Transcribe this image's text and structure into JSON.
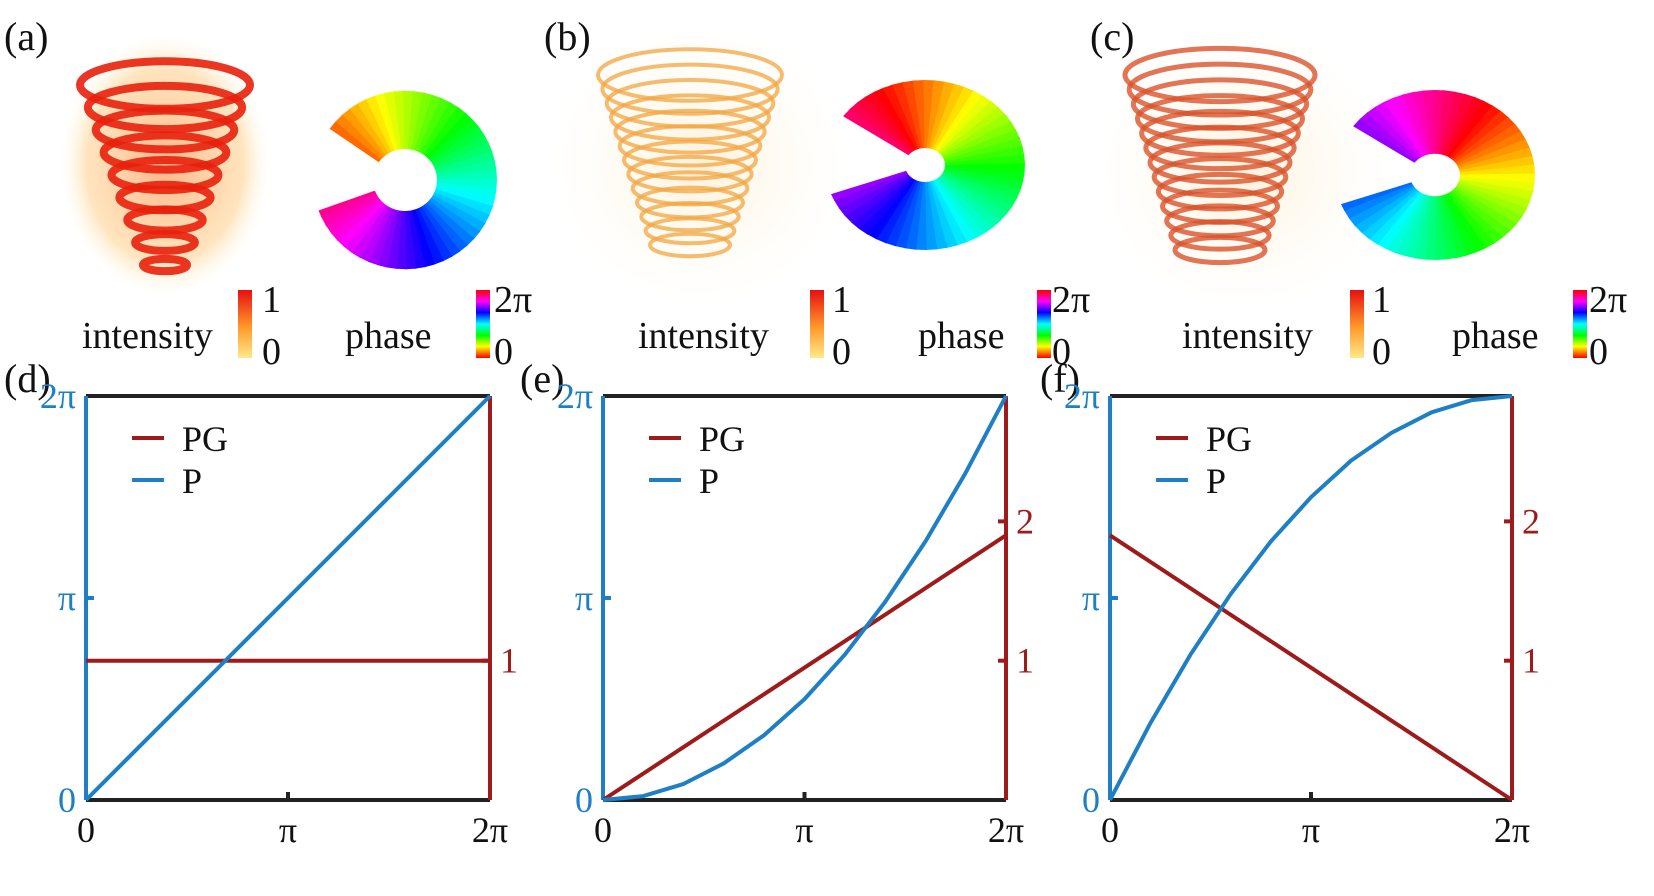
{
  "colors": {
    "pg": "#9e1b1b",
    "p": "#1f7fc4",
    "frame": "#222222",
    "text": "#111111"
  },
  "top_panels": [
    {
      "label": "(a)",
      "intensity_label": "intensity",
      "intensity_max": "1",
      "intensity_min": "0",
      "phase_label": "phase",
      "phase_max": "2π",
      "phase_min": "0"
    },
    {
      "label": "(b)",
      "intensity_label": "intensity",
      "intensity_max": "1",
      "intensity_min": "0",
      "phase_label": "phase",
      "phase_max": "2π",
      "phase_min": "0"
    },
    {
      "label": "(c)",
      "intensity_label": "intensity",
      "intensity_max": "1",
      "intensity_min": "0",
      "phase_label": "phase",
      "phase_max": "2π",
      "phase_min": "0"
    }
  ],
  "chart_data": [
    {
      "panel": "(d)",
      "type": "line",
      "x_ticks": [
        "0",
        "π",
        "2π"
      ],
      "xlim": [
        0,
        6.2832
      ],
      "left_axis": {
        "ticks": [
          "0",
          "π",
          "2π"
        ],
        "tick_values": [
          0,
          3.1416,
          6.2832
        ],
        "ylim": [
          0,
          6.2832
        ]
      },
      "right_axis": {
        "ticks": [
          "1"
        ],
        "tick_values": [
          1
        ],
        "ylim": [
          0,
          2.9
        ]
      },
      "legend": [
        "PG",
        "P"
      ],
      "legend_position": "top-left",
      "series": [
        {
          "name": "PG",
          "axis": "right",
          "x": [
            0,
            6.2832
          ],
          "y": [
            1,
            1
          ]
        },
        {
          "name": "P",
          "axis": "left",
          "x": [
            0,
            1.5708,
            3.1416,
            4.7124,
            6.2832
          ],
          "y": [
            0,
            1.5708,
            3.1416,
            4.7124,
            6.2832
          ]
        }
      ]
    },
    {
      "panel": "(e)",
      "type": "line",
      "x_ticks": [
        "0",
        "π",
        "2π"
      ],
      "xlim": [
        0,
        6.2832
      ],
      "left_axis": {
        "ticks": [
          "0",
          "π",
          "2π"
        ],
        "tick_values": [
          0,
          3.1416,
          6.2832
        ],
        "ylim": [
          0,
          6.2832
        ]
      },
      "right_axis": {
        "ticks": [
          "1",
          "2"
        ],
        "tick_values": [
          1,
          2
        ],
        "ylim": [
          0,
          2.9
        ]
      },
      "legend": [
        "PG",
        "P"
      ],
      "legend_position": "top-left",
      "series": [
        {
          "name": "PG",
          "axis": "right",
          "x": [
            0,
            6.2832
          ],
          "y": [
            0,
            1.9
          ]
        },
        {
          "name": "P",
          "axis": "left",
          "x": [
            0,
            0.6283,
            1.2566,
            1.885,
            2.5133,
            3.1416,
            3.7699,
            4.3982,
            5.0265,
            5.6549,
            6.2832
          ],
          "y": [
            0,
            0.06,
            0.25,
            0.57,
            1.01,
            1.57,
            2.26,
            3.08,
            4.02,
            5.09,
            6.2832
          ]
        }
      ]
    },
    {
      "panel": "(f)",
      "type": "line",
      "x_ticks": [
        "0",
        "π",
        "2π"
      ],
      "xlim": [
        0,
        6.2832
      ],
      "left_axis": {
        "ticks": [
          "0",
          "π",
          "2π"
        ],
        "tick_values": [
          0,
          3.1416,
          6.2832
        ],
        "ylim": [
          0,
          6.2832
        ]
      },
      "right_axis": {
        "ticks": [
          "1",
          "2"
        ],
        "tick_values": [
          1,
          2
        ],
        "ylim": [
          0,
          2.9
        ]
      },
      "legend": [
        "PG",
        "P"
      ],
      "legend_position": "top-left",
      "series": [
        {
          "name": "PG",
          "axis": "right",
          "x": [
            0,
            6.2832
          ],
          "y": [
            1.9,
            0
          ]
        },
        {
          "name": "P",
          "axis": "left",
          "x": [
            0,
            0.6283,
            1.2566,
            1.885,
            2.5133,
            3.1416,
            3.7699,
            4.3982,
            5.0265,
            5.6549,
            6.2832
          ],
          "y": [
            0,
            1.19,
            2.26,
            3.2,
            4.02,
            4.71,
            5.28,
            5.71,
            6.03,
            6.22,
            6.2832
          ]
        }
      ]
    }
  ]
}
